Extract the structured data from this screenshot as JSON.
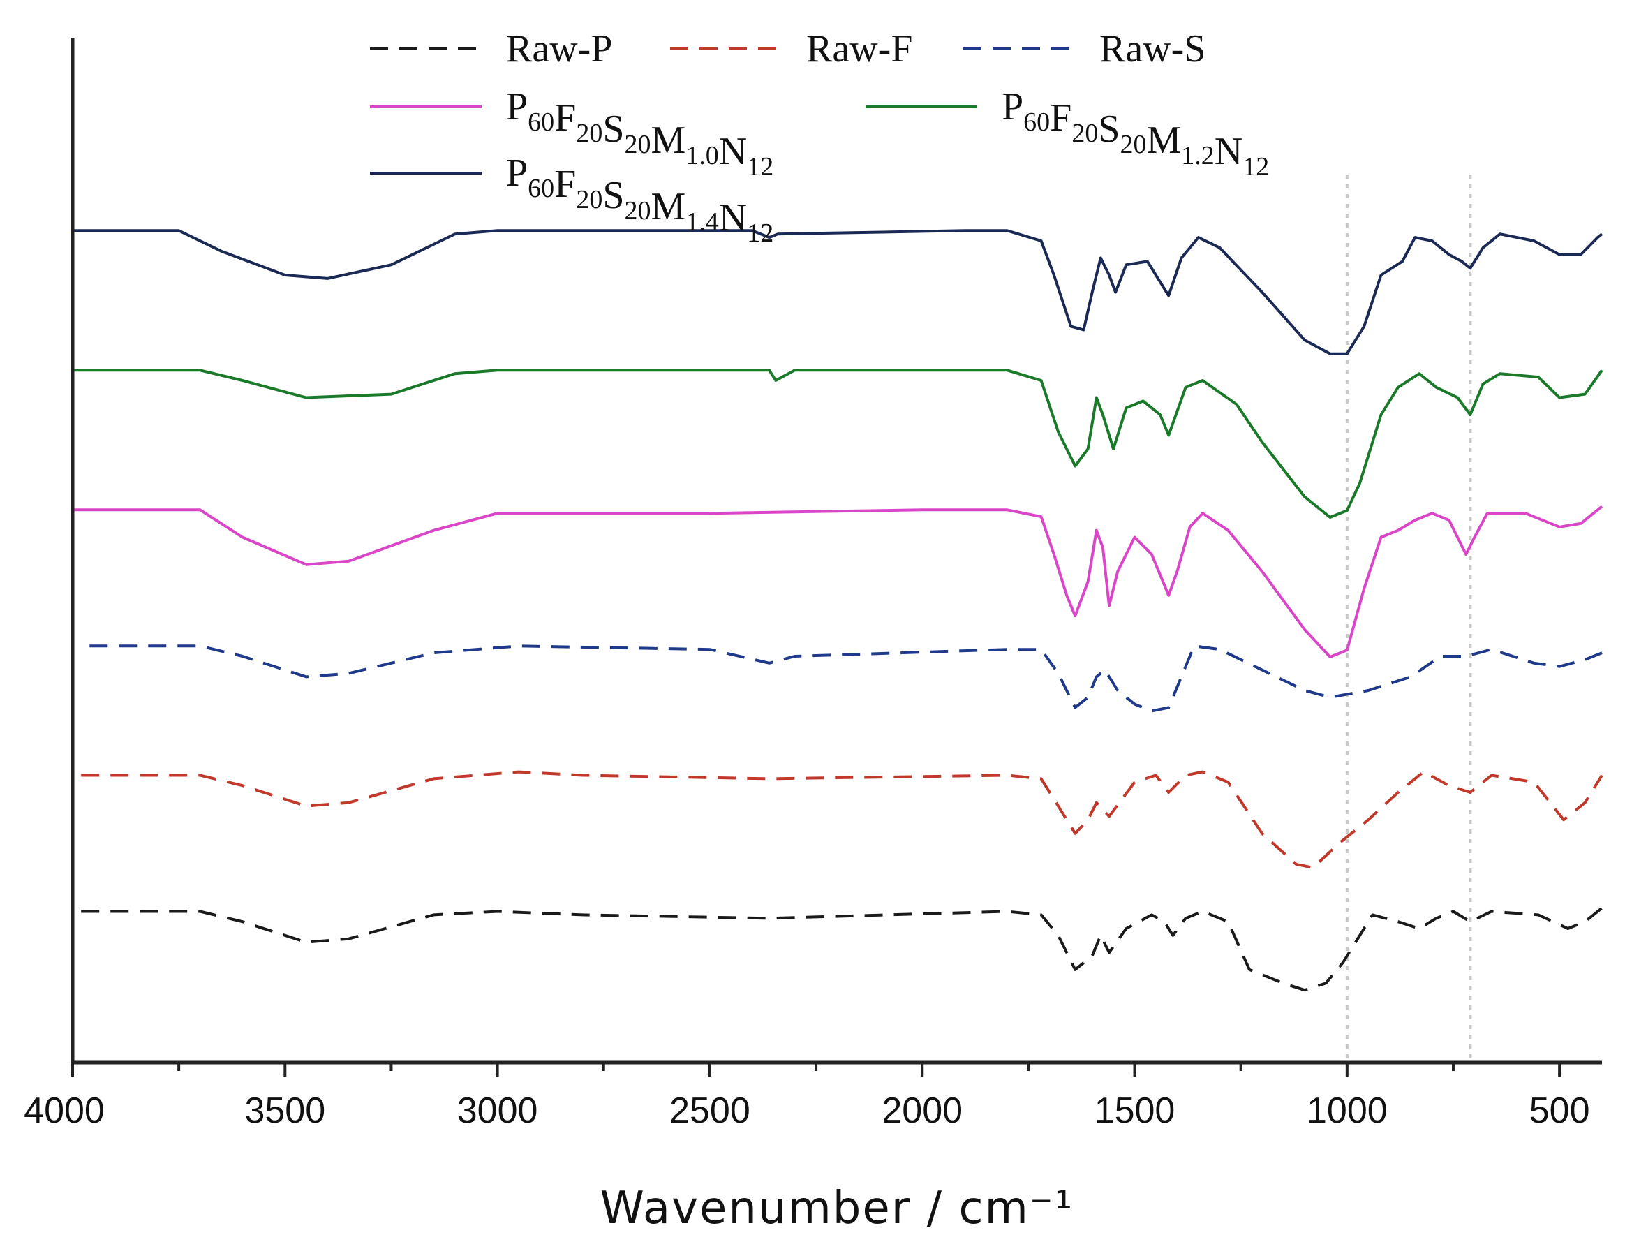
{
  "chart_data": {
    "type": "line",
    "title": "",
    "xlabel": "Wavenumber / cm⁻¹",
    "ylabel": "",
    "xlim": [
      4000,
      400
    ],
    "x_ticks": [
      4000,
      3500,
      3000,
      2500,
      2000,
      1500,
      1000,
      500
    ],
    "x_reversed": true,
    "y_ticks_shown": false,
    "y_units": "transmittance (a.u., offset)",
    "legend_position": "top",
    "reference_lines_x": [
      1000,
      710
    ],
    "series": [
      {
        "name": "Raw-P",
        "legend_parts": [
          [
            "Raw-P",
            ""
          ]
        ],
        "color": "#1a1a1a",
        "dash": true,
        "points": [
          [
            3980,
            0.05
          ],
          [
            3700,
            0.05
          ],
          [
            3600,
            0.02
          ],
          [
            3450,
            -0.04
          ],
          [
            3350,
            -0.03
          ],
          [
            3150,
            0.04
          ],
          [
            3000,
            0.05
          ],
          [
            2800,
            0.04
          ],
          [
            2360,
            0.03
          ],
          [
            1800,
            0.05
          ],
          [
            1720,
            0.04
          ],
          [
            1680,
            -0.02
          ],
          [
            1640,
            -0.12
          ],
          [
            1600,
            -0.08
          ],
          [
            1580,
            -0.02
          ],
          [
            1560,
            -0.07
          ],
          [
            1520,
            0.0
          ],
          [
            1460,
            0.04
          ],
          [
            1430,
            0.02
          ],
          [
            1410,
            -0.02
          ],
          [
            1380,
            0.03
          ],
          [
            1340,
            0.05
          ],
          [
            1280,
            0.02
          ],
          [
            1230,
            -0.12
          ],
          [
            1150,
            -0.16
          ],
          [
            1100,
            -0.18
          ],
          [
            1050,
            -0.16
          ],
          [
            1010,
            -0.1
          ],
          [
            970,
            -0.02
          ],
          [
            940,
            0.04
          ],
          [
            880,
            0.02
          ],
          [
            830,
            0.0
          ],
          [
            790,
            0.03
          ],
          [
            750,
            0.05
          ],
          [
            710,
            0.02
          ],
          [
            660,
            0.05
          ],
          [
            550,
            0.04
          ],
          [
            480,
            0.0
          ],
          [
            440,
            0.02
          ],
          [
            400,
            0.06
          ]
        ]
      },
      {
        "name": "Raw-F",
        "legend_parts": [
          [
            "Raw-F",
            ""
          ]
        ],
        "color": "#c0392b",
        "dash": true,
        "points": [
          [
            3980,
            0.05
          ],
          [
            3700,
            0.05
          ],
          [
            3600,
            0.02
          ],
          [
            3450,
            -0.04
          ],
          [
            3350,
            -0.03
          ],
          [
            3150,
            0.04
          ],
          [
            2950,
            0.06
          ],
          [
            2800,
            0.05
          ],
          [
            2360,
            0.04
          ],
          [
            1800,
            0.05
          ],
          [
            1720,
            0.04
          ],
          [
            1680,
            -0.04
          ],
          [
            1640,
            -0.12
          ],
          [
            1610,
            -0.08
          ],
          [
            1590,
            -0.03
          ],
          [
            1560,
            -0.07
          ],
          [
            1500,
            0.03
          ],
          [
            1450,
            0.05
          ],
          [
            1420,
            0.0
          ],
          [
            1380,
            0.05
          ],
          [
            1340,
            0.06
          ],
          [
            1280,
            0.03
          ],
          [
            1200,
            -0.12
          ],
          [
            1120,
            -0.21
          ],
          [
            1080,
            -0.22
          ],
          [
            1020,
            -0.15
          ],
          [
            950,
            -0.08
          ],
          [
            880,
            0.0
          ],
          [
            820,
            0.06
          ],
          [
            760,
            0.02
          ],
          [
            710,
            0.0
          ],
          [
            660,
            0.05
          ],
          [
            560,
            0.03
          ],
          [
            490,
            -0.08
          ],
          [
            440,
            -0.03
          ],
          [
            400,
            0.05
          ]
        ]
      },
      {
        "name": "Raw-S",
        "legend_parts": [
          [
            "Raw-S",
            ""
          ]
        ],
        "color": "#1f3a8a",
        "dash": true,
        "points": [
          [
            3960,
            0.03
          ],
          [
            3700,
            0.03
          ],
          [
            3600,
            0.0
          ],
          [
            3450,
            -0.06
          ],
          [
            3350,
            -0.05
          ],
          [
            3150,
            0.01
          ],
          [
            2950,
            0.03
          ],
          [
            2500,
            0.02
          ],
          [
            2360,
            -0.02
          ],
          [
            2300,
            0.0
          ],
          [
            1800,
            0.02
          ],
          [
            1720,
            0.02
          ],
          [
            1680,
            -0.05
          ],
          [
            1640,
            -0.15
          ],
          [
            1610,
            -0.12
          ],
          [
            1590,
            -0.06
          ],
          [
            1570,
            -0.04
          ],
          [
            1540,
            -0.1
          ],
          [
            1500,
            -0.14
          ],
          [
            1460,
            -0.16
          ],
          [
            1420,
            -0.15
          ],
          [
            1390,
            -0.06
          ],
          [
            1360,
            0.03
          ],
          [
            1300,
            0.02
          ],
          [
            1200,
            -0.04
          ],
          [
            1100,
            -0.1
          ],
          [
            1040,
            -0.12
          ],
          [
            950,
            -0.1
          ],
          [
            850,
            -0.06
          ],
          [
            780,
            0.0
          ],
          [
            720,
            0.0
          ],
          [
            660,
            0.02
          ],
          [
            560,
            -0.02
          ],
          [
            500,
            -0.03
          ],
          [
            440,
            -0.01
          ],
          [
            400,
            0.01
          ]
        ]
      },
      {
        "name": "P60F20S20M1.0N12",
        "legend_parts": [
          [
            "P",
            "60"
          ],
          [
            "F",
            "20"
          ],
          [
            "S",
            "20"
          ],
          [
            "M",
            "1.0"
          ],
          [
            "N",
            "12"
          ]
        ],
        "color": "#d946c7",
        "dash": false,
        "points": [
          [
            4000,
            0.03
          ],
          [
            3700,
            0.03
          ],
          [
            3600,
            -0.05
          ],
          [
            3450,
            -0.13
          ],
          [
            3350,
            -0.12
          ],
          [
            3150,
            -0.03
          ],
          [
            3000,
            0.02
          ],
          [
            2500,
            0.02
          ],
          [
            2000,
            0.03
          ],
          [
            1800,
            0.03
          ],
          [
            1720,
            0.01
          ],
          [
            1690,
            -0.1
          ],
          [
            1660,
            -0.22
          ],
          [
            1640,
            -0.28
          ],
          [
            1610,
            -0.18
          ],
          [
            1590,
            -0.03
          ],
          [
            1575,
            -0.08
          ],
          [
            1560,
            -0.25
          ],
          [
            1540,
            -0.15
          ],
          [
            1500,
            -0.05
          ],
          [
            1460,
            -0.1
          ],
          [
            1420,
            -0.22
          ],
          [
            1400,
            -0.15
          ],
          [
            1370,
            -0.02
          ],
          [
            1340,
            0.02
          ],
          [
            1280,
            -0.03
          ],
          [
            1200,
            -0.15
          ],
          [
            1100,
            -0.32
          ],
          [
            1040,
            -0.4
          ],
          [
            1000,
            -0.38
          ],
          [
            960,
            -0.2
          ],
          [
            920,
            -0.05
          ],
          [
            880,
            -0.03
          ],
          [
            840,
            0.0
          ],
          [
            800,
            0.02
          ],
          [
            760,
            0.0
          ],
          [
            720,
            -0.1
          ],
          [
            700,
            -0.05
          ],
          [
            670,
            0.02
          ],
          [
            580,
            0.02
          ],
          [
            500,
            -0.02
          ],
          [
            450,
            -0.01
          ],
          [
            400,
            0.04
          ]
        ]
      },
      {
        "name": "P60F20S20M1.2N12",
        "legend_parts": [
          [
            "P",
            "60"
          ],
          [
            "F",
            "20"
          ],
          [
            "S",
            "20"
          ],
          [
            "M",
            "1.2"
          ],
          [
            "N",
            "12"
          ]
        ],
        "color": "#1a7a2a",
        "dash": false,
        "points": [
          [
            4000,
            0.03
          ],
          [
            3700,
            0.03
          ],
          [
            3600,
            0.0
          ],
          [
            3450,
            -0.05
          ],
          [
            3250,
            -0.04
          ],
          [
            3100,
            0.02
          ],
          [
            3000,
            0.03
          ],
          [
            2360,
            0.03
          ],
          [
            2345,
            0.0
          ],
          [
            2300,
            0.03
          ],
          [
            1800,
            0.03
          ],
          [
            1720,
            0.0
          ],
          [
            1680,
            -0.15
          ],
          [
            1640,
            -0.25
          ],
          [
            1610,
            -0.2
          ],
          [
            1590,
            -0.05
          ],
          [
            1575,
            -0.1
          ],
          [
            1550,
            -0.2
          ],
          [
            1520,
            -0.08
          ],
          [
            1480,
            -0.06
          ],
          [
            1440,
            -0.1
          ],
          [
            1420,
            -0.16
          ],
          [
            1380,
            -0.02
          ],
          [
            1340,
            0.0
          ],
          [
            1260,
            -0.07
          ],
          [
            1200,
            -0.18
          ],
          [
            1100,
            -0.34
          ],
          [
            1040,
            -0.4
          ],
          [
            1000,
            -0.38
          ],
          [
            970,
            -0.3
          ],
          [
            920,
            -0.1
          ],
          [
            880,
            -0.02
          ],
          [
            830,
            0.02
          ],
          [
            790,
            -0.02
          ],
          [
            740,
            -0.05
          ],
          [
            710,
            -0.1
          ],
          [
            680,
            -0.01
          ],
          [
            640,
            0.02
          ],
          [
            550,
            0.01
          ],
          [
            500,
            -0.05
          ],
          [
            440,
            -0.04
          ],
          [
            400,
            0.03
          ]
        ]
      },
      {
        "name": "P60F20S20M1.4N12",
        "legend_parts": [
          [
            "P",
            "60"
          ],
          [
            "F",
            "20"
          ],
          [
            "S",
            "20"
          ],
          [
            "M",
            "1.4"
          ],
          [
            "N",
            "12"
          ]
        ],
        "color": "#1b2a55",
        "dash": false,
        "points": [
          [
            4000,
            0.03
          ],
          [
            3750,
            0.03
          ],
          [
            3650,
            -0.03
          ],
          [
            3500,
            -0.1
          ],
          [
            3400,
            -0.11
          ],
          [
            3250,
            -0.07
          ],
          [
            3100,
            0.02
          ],
          [
            3000,
            0.03
          ],
          [
            2400,
            0.03
          ],
          [
            2360,
            0.01
          ],
          [
            2340,
            0.02
          ],
          [
            1900,
            0.03
          ],
          [
            1800,
            0.03
          ],
          [
            1720,
            0.0
          ],
          [
            1690,
            -0.1
          ],
          [
            1650,
            -0.25
          ],
          [
            1620,
            -0.26
          ],
          [
            1600,
            -0.15
          ],
          [
            1580,
            -0.05
          ],
          [
            1560,
            -0.1
          ],
          [
            1545,
            -0.15
          ],
          [
            1520,
            -0.07
          ],
          [
            1470,
            -0.06
          ],
          [
            1440,
            -0.12
          ],
          [
            1420,
            -0.16
          ],
          [
            1390,
            -0.05
          ],
          [
            1350,
            0.01
          ],
          [
            1300,
            -0.02
          ],
          [
            1200,
            -0.15
          ],
          [
            1100,
            -0.29
          ],
          [
            1040,
            -0.33
          ],
          [
            1000,
            -0.33
          ],
          [
            960,
            -0.25
          ],
          [
            920,
            -0.1
          ],
          [
            870,
            -0.06
          ],
          [
            840,
            0.01
          ],
          [
            800,
            0.0
          ],
          [
            760,
            -0.04
          ],
          [
            730,
            -0.06
          ],
          [
            710,
            -0.08
          ],
          [
            680,
            -0.02
          ],
          [
            640,
            0.02
          ],
          [
            560,
            0.0
          ],
          [
            500,
            -0.04
          ],
          [
            450,
            -0.04
          ],
          [
            410,
            0.01
          ],
          [
            400,
            0.02
          ]
        ]
      }
    ]
  }
}
